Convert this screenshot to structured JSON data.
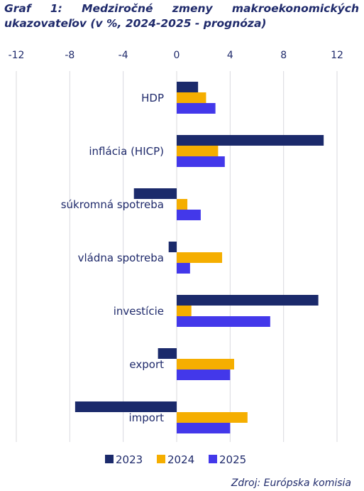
{
  "title": "Graf 1: Medziročné zmeny makroekonomických ukazovateľov (v %, 2024-2025 - prognóza)",
  "source": "Zdroj: Európska komisia",
  "chart_data": {
    "type": "bar",
    "orientation": "horizontal",
    "categories": [
      "HDP",
      "inflácia (HICP)",
      "súkromná spotreba",
      "vládna spotreba",
      "investície",
      "export",
      "import"
    ],
    "series": [
      {
        "name": "2023",
        "color": "#1b2a6b",
        "values": [
          1.6,
          11.0,
          -3.2,
          -0.6,
          10.6,
          -1.4,
          -7.6
        ]
      },
      {
        "name": "2024",
        "color": "#f5ae00",
        "values": [
          2.2,
          3.1,
          0.8,
          3.4,
          1.1,
          4.3,
          5.3
        ]
      },
      {
        "name": "2025",
        "color": "#4338ea",
        "values": [
          2.9,
          3.6,
          1.8,
          1.0,
          7.0,
          4.0,
          4.0
        ]
      }
    ],
    "xlim": [
      -12,
      12
    ],
    "xticks": [
      -12,
      -8,
      -4,
      0,
      4,
      8,
      12
    ],
    "xtick_labels": [
      "-12",
      "-8",
      "-4",
      "0",
      "4",
      "8",
      "12"
    ],
    "grid": true,
    "axis_position": "top",
    "legend_position": "bottom"
  }
}
